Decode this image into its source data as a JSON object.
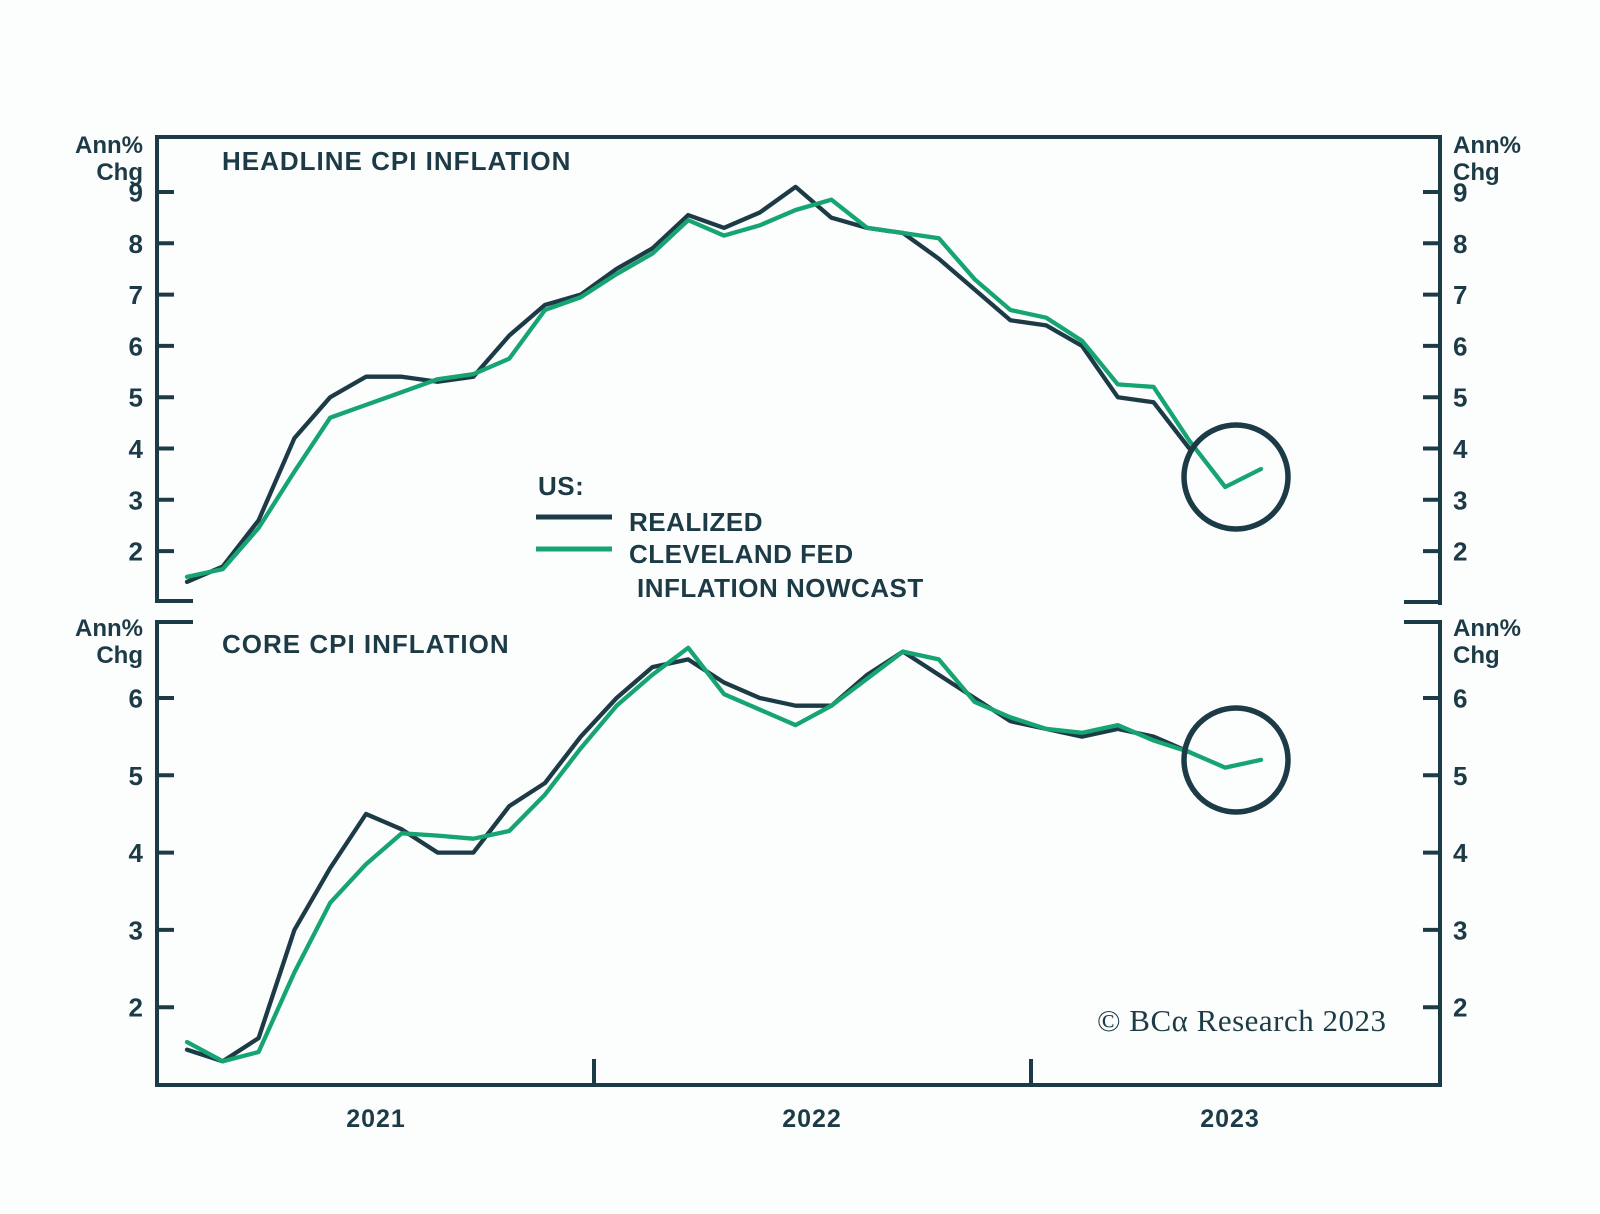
{
  "page": {
    "background": "#fcfdfd"
  },
  "colors": {
    "ink": "#1d3b46",
    "realized": "#1d3b46",
    "nowcast": "#16a572"
  },
  "legend": {
    "heading": "US:",
    "realized_label": "REALIZED",
    "nowcast_label_line1": "CLEVELAND FED",
    "nowcast_label_line2": "INFLATION NOWCAST"
  },
  "footer": {
    "copyright": "© BCα Research 2023"
  },
  "axis_x": {
    "year_labels": [
      "2021",
      "2022",
      "2023"
    ]
  },
  "chart_data": [
    {
      "type": "line",
      "title": "HEADLINE CPI INFLATION",
      "ylabel_lines": [
        "Ann%",
        "Chg"
      ],
      "yticks": [
        9,
        8,
        7,
        6,
        5,
        4,
        3,
        2
      ],
      "ylim": [
        1.05,
        10.05
      ],
      "x": [
        "Jan-21",
        "Feb-21",
        "Mar-21",
        "Apr-21",
        "May-21",
        "Jun-21",
        "Jul-21",
        "Aug-21",
        "Sep-21",
        "Oct-21",
        "Nov-21",
        "Dec-21",
        "Jan-22",
        "Feb-22",
        "Mar-22",
        "Apr-22",
        "May-22",
        "Jun-22",
        "Jul-22",
        "Aug-22",
        "Sep-22",
        "Oct-22",
        "Nov-22",
        "Dec-22",
        "Jan-23",
        "Feb-23",
        "Mar-23",
        "Apr-23",
        "May-23",
        "Jun-23",
        "Jul-23"
      ],
      "series": [
        {
          "name": "REALIZED",
          "color": "#1d3b46",
          "values": [
            1.4,
            1.7,
            2.6,
            4.2,
            5.0,
            5.4,
            5.4,
            5.3,
            5.4,
            6.2,
            6.8,
            7.0,
            7.5,
            7.9,
            8.55,
            8.3,
            8.6,
            9.1,
            8.5,
            8.3,
            8.2,
            7.7,
            7.1,
            6.5,
            6.4,
            6.0,
            5.0,
            4.9,
            4.0,
            null,
            null
          ]
        },
        {
          "name": "CLEVELAND FED INFLATION NOWCAST",
          "color": "#16a572",
          "values": [
            1.5,
            1.65,
            2.45,
            3.55,
            4.6,
            4.85,
            5.1,
            5.35,
            5.45,
            5.75,
            6.7,
            6.95,
            7.4,
            7.8,
            8.45,
            8.15,
            8.35,
            8.65,
            8.85,
            8.3,
            8.2,
            8.1,
            7.3,
            6.7,
            6.55,
            6.1,
            5.25,
            5.2,
            4.15,
            3.25,
            3.6
          ]
        }
      ],
      "annotation": "circle highlighting latest nowcast dip (~3.3 rising to ~3.6)"
    },
    {
      "type": "line",
      "title": "CORE CPI INFLATION",
      "ylabel_lines": [
        "Ann%",
        "Chg"
      ],
      "yticks": [
        6,
        5,
        4,
        3,
        2
      ],
      "ylim": [
        1.0,
        7.0
      ],
      "x": [
        "Jan-21",
        "Feb-21",
        "Mar-21",
        "Apr-21",
        "May-21",
        "Jun-21",
        "Jul-21",
        "Aug-21",
        "Sep-21",
        "Oct-21",
        "Nov-21",
        "Dec-21",
        "Jan-22",
        "Feb-22",
        "Mar-22",
        "Apr-22",
        "May-22",
        "Jun-22",
        "Jul-22",
        "Aug-22",
        "Sep-22",
        "Oct-22",
        "Nov-22",
        "Dec-22",
        "Jan-23",
        "Feb-23",
        "Mar-23",
        "Apr-23",
        "May-23",
        "Jun-23",
        "Jul-23"
      ],
      "series": [
        {
          "name": "REALIZED",
          "color": "#1d3b46",
          "values": [
            1.45,
            1.3,
            1.6,
            3.0,
            3.8,
            4.5,
            4.3,
            4.0,
            4.0,
            4.6,
            4.9,
            5.5,
            6.0,
            6.4,
            6.5,
            6.2,
            6.0,
            5.9,
            5.9,
            6.3,
            6.6,
            6.3,
            6.0,
            5.7,
            5.6,
            5.5,
            5.6,
            5.5,
            5.3,
            null,
            null
          ]
        },
        {
          "name": "CLEVELAND FED INFLATION NOWCAST",
          "color": "#16a572",
          "values": [
            1.55,
            1.3,
            1.42,
            2.45,
            3.35,
            3.85,
            4.25,
            4.22,
            4.18,
            4.28,
            4.75,
            5.35,
            5.9,
            6.3,
            6.65,
            6.05,
            5.85,
            5.65,
            5.9,
            6.25,
            6.6,
            6.5,
            5.95,
            5.75,
            5.6,
            5.55,
            5.65,
            5.45,
            5.3,
            5.1,
            5.2
          ]
        }
      ],
      "annotation": "circle highlighting latest nowcast dip (~5.1 rising to ~5.2)"
    }
  ]
}
